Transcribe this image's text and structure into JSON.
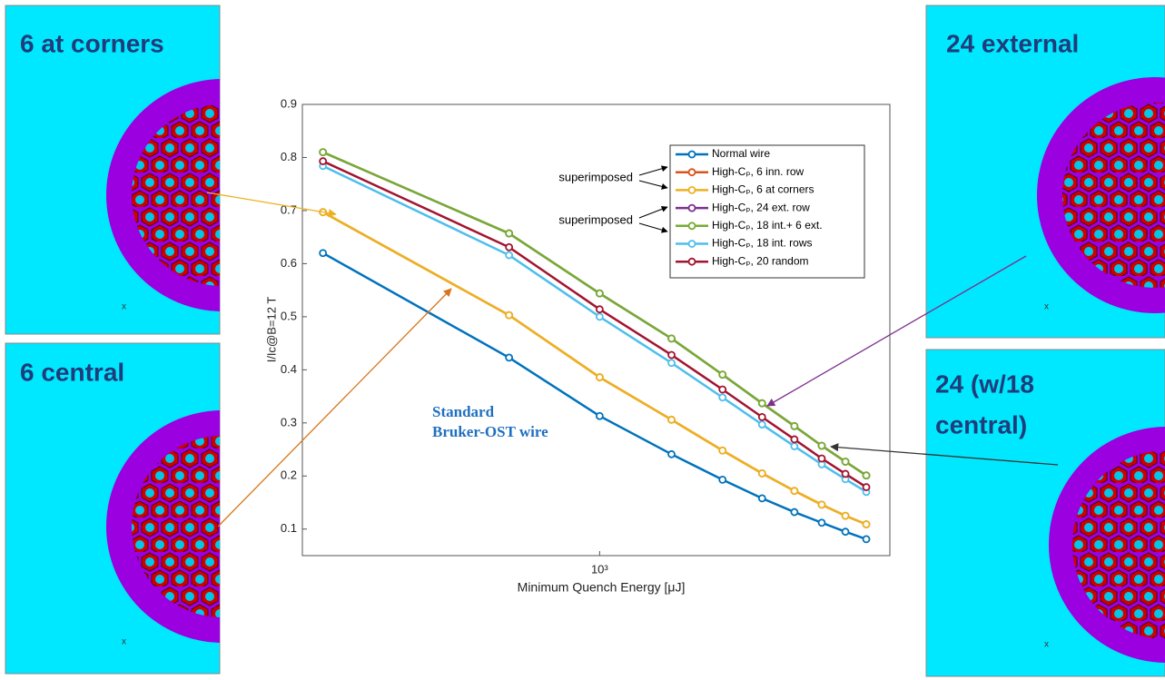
{
  "chart_data": {
    "type": "line",
    "xlabel": "Minimum Quench Energy [μJ]",
    "ylabel": "I/Ic@B=12 T",
    "xscale": "log",
    "xlim": [
      187,
      5140
    ],
    "xticks": [
      {
        "value": 1000,
        "label": "10³"
      }
    ],
    "ylim": [
      0.05,
      0.9
    ],
    "yticks": [
      0.1,
      0.2,
      0.3,
      0.4,
      0.5,
      0.6,
      0.7,
      0.8,
      0.9
    ],
    "x": [
      210,
      600,
      1000,
      1500,
      2000,
      2500,
      3000,
      3500,
      4000,
      4500
    ],
    "legend": "upper right",
    "series": [
      {
        "name": "Normal wire",
        "color": "#0072bd",
        "values": [
          0.62,
          0.423,
          0.313,
          0.241,
          0.193,
          0.158,
          0.132,
          0.112,
          0.095,
          0.081
        ]
      },
      {
        "name": "High-Cₚ, 6 inn. row",
        "color": "#d95319",
        "values": [
          0.697,
          0.503,
          0.386,
          0.306,
          0.248,
          0.205,
          0.172,
          0.146,
          0.125,
          0.109
        ]
      },
      {
        "name": "High-Cₚ, 6 at corners",
        "color": "#edb120",
        "values": [
          0.697,
          0.503,
          0.386,
          0.306,
          0.248,
          0.205,
          0.172,
          0.146,
          0.125,
          0.109
        ]
      },
      {
        "name": "High-Cₚ, 24 ext. row",
        "color": "#7e2f8e",
        "values": [
          0.81,
          0.657,
          0.544,
          0.459,
          0.391,
          0.337,
          0.294,
          0.257,
          0.227,
          0.201
        ]
      },
      {
        "name": "High-Cₚ, 18 int.+ 6 ext.",
        "color": "#77ac30",
        "values": [
          0.81,
          0.657,
          0.544,
          0.459,
          0.391,
          0.337,
          0.294,
          0.257,
          0.227,
          0.201
        ]
      },
      {
        "name": "High-Cₚ, 18 int. rows",
        "color": "#4dbeee",
        "values": [
          0.784,
          0.616,
          0.5,
          0.413,
          0.348,
          0.297,
          0.256,
          0.222,
          0.194,
          0.17
        ]
      },
      {
        "name": "High-Cₚ, 20 random",
        "color": "#a2142f",
        "values": [
          0.793,
          0.631,
          0.514,
          0.428,
          0.363,
          0.311,
          0.269,
          0.233,
          0.204,
          0.179
        ]
      }
    ],
    "annotations": [
      "superimposed",
      "superimposed"
    ],
    "note_lines": [
      "Standard",
      "Bruker-OST wire"
    ]
  },
  "panels": [
    {
      "label": "6 at corners",
      "axis_label": "x"
    },
    {
      "label": "6 central",
      "axis_label": "x"
    },
    {
      "label": "24 external",
      "axis_label": "x"
    },
    {
      "label_lines": [
        "24 (w/18",
        "central)"
      ],
      "axis_label": "x"
    }
  ]
}
